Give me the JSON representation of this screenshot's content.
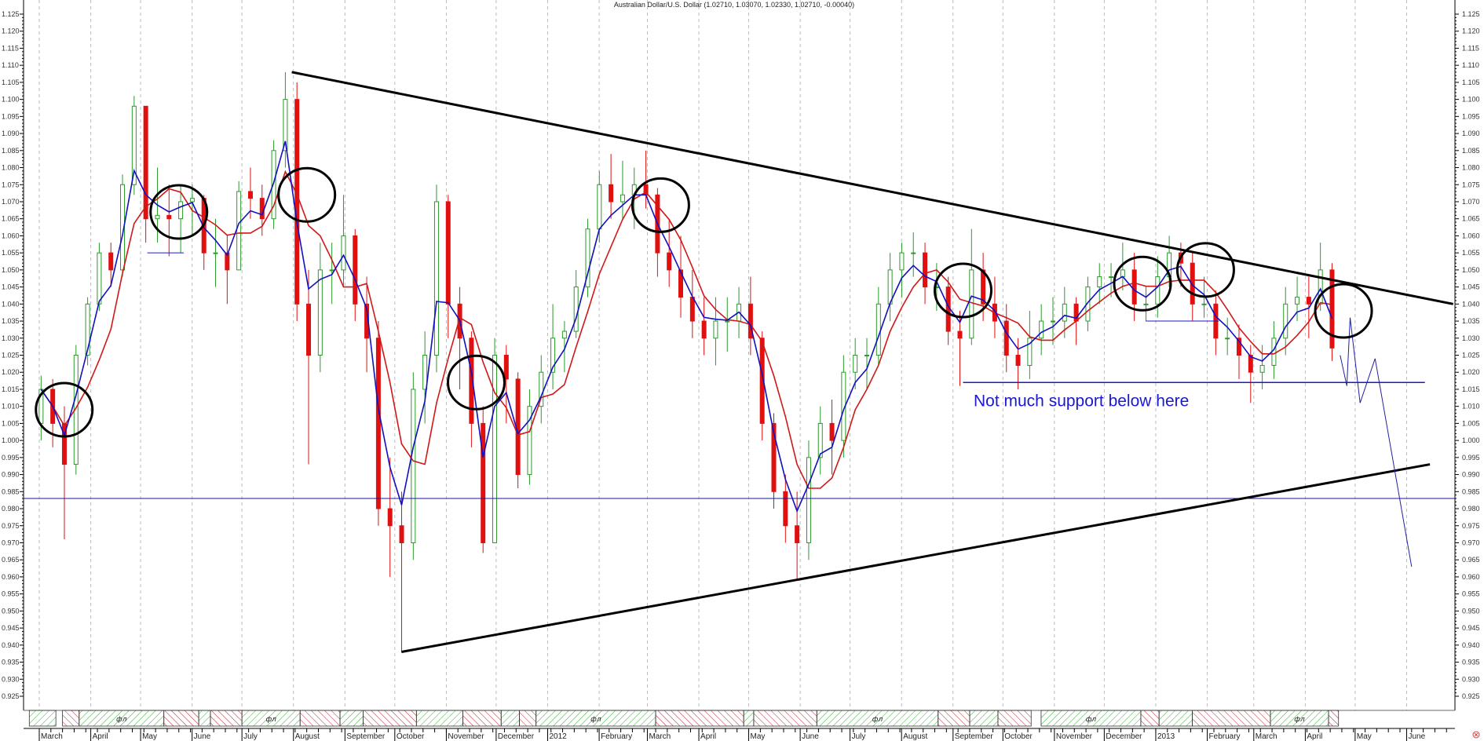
{
  "chart_data": {
    "type": "candlestick",
    "title": "Australian Dollar/U.S. Dollar (1.02710, 1.03070, 1.02330, 1.02710, -0.00040)",
    "ylim": [
      0.925,
      1.125
    ],
    "xlim": [
      "2011-03-01",
      "2013-06-30"
    ],
    "grid": "vertical dashed at month starts",
    "yticks": [
      "1.125",
      "1.120",
      "1.115",
      "1.110",
      "1.105",
      "1.100",
      "1.095",
      "1.090",
      "1.085",
      "1.080",
      "1.075",
      "1.070",
      "1.065",
      "1.060",
      "1.055",
      "1.050",
      "1.045",
      "1.040",
      "1.035",
      "1.030",
      "1.025",
      "1.020",
      "1.015",
      "1.010",
      "1.005",
      "1.000",
      "0.995",
      "0.990",
      "0.985",
      "0.980",
      "0.975",
      "0.970",
      "0.965",
      "0.960",
      "0.955",
      "0.950",
      "0.945",
      "0.940",
      "0.935",
      "0.930",
      "0.925"
    ],
    "xticks": [
      {
        "date": "2011-03-01",
        "label": "March"
      },
      {
        "date": "2011-04-01",
        "label": "April"
      },
      {
        "date": "2011-05-01",
        "label": "May"
      },
      {
        "date": "2011-06-01",
        "label": "June"
      },
      {
        "date": "2011-07-01",
        "label": "July"
      },
      {
        "date": "2011-08-01",
        "label": "August"
      },
      {
        "date": "2011-09-01",
        "label": "September"
      },
      {
        "date": "2011-10-01",
        "label": "October"
      },
      {
        "date": "2011-11-01",
        "label": "November"
      },
      {
        "date": "2011-12-01",
        "label": "December"
      },
      {
        "date": "2012-01-01",
        "label": "2012"
      },
      {
        "date": "2012-02-01",
        "label": "February"
      },
      {
        "date": "2012-03-01",
        "label": "March"
      },
      {
        "date": "2012-04-01",
        "label": "April"
      },
      {
        "date": "2012-05-01",
        "label": "May"
      },
      {
        "date": "2012-06-01",
        "label": "June"
      },
      {
        "date": "2012-07-01",
        "label": "July"
      },
      {
        "date": "2012-08-01",
        "label": "August"
      },
      {
        "date": "2012-09-01",
        "label": "September"
      },
      {
        "date": "2012-10-01",
        "label": "October"
      },
      {
        "date": "2012-11-01",
        "label": "November"
      },
      {
        "date": "2012-12-01",
        "label": "December"
      },
      {
        "date": "2013-01-01",
        "label": "2013"
      },
      {
        "date": "2013-02-01",
        "label": "February"
      },
      {
        "date": "2013-03-01",
        "label": "March"
      },
      {
        "date": "2013-04-01",
        "label": "April"
      },
      {
        "date": "2013-05-01",
        "label": "May"
      },
      {
        "date": "2013-06-01",
        "label": "June"
      }
    ],
    "colors": {
      "up": "#2a9a2a",
      "down": "#e01010",
      "fast_ma": "#1010c0",
      "slow_ma": "#d01818",
      "trendline": "#000000",
      "annotation": "#1a1acc"
    },
    "ohlc_fields": [
      "date",
      "high",
      "low",
      "close"
    ],
    "first_open": 1.005,
    "bars": [
      [
        "2011-03-04",
        1.019,
        1.0,
        1.015
      ],
      [
        "2011-03-11",
        1.018,
        0.998,
        1.005
      ],
      [
        "2011-03-18",
        1.01,
        0.971,
        0.993
      ],
      [
        "2011-03-25",
        1.028,
        0.99,
        1.025
      ],
      [
        "2011-04-01",
        1.042,
        1.022,
        1.04
      ],
      [
        "2011-04-08",
        1.058,
        1.038,
        1.055
      ],
      [
        "2011-04-15",
        1.058,
        1.045,
        1.05
      ],
      [
        "2011-04-22",
        1.078,
        1.048,
        1.075
      ],
      [
        "2011-04-29",
        1.101,
        1.072,
        1.098
      ],
      [
        "2011-05-06",
        1.097,
        1.058,
        1.065
      ],
      [
        "2011-05-13",
        1.08,
        1.058,
        1.066
      ],
      [
        "2011-05-20",
        1.075,
        1.054,
        1.065
      ],
      [
        "2011-05-27",
        1.075,
        1.055,
        1.07
      ],
      [
        "2011-06-03",
        1.075,
        1.06,
        1.071
      ],
      [
        "2011-06-10",
        1.072,
        1.05,
        1.055
      ],
      [
        "2011-06-17",
        1.065,
        1.045,
        1.055
      ],
      [
        "2011-06-24",
        1.06,
        1.04,
        1.05
      ],
      [
        "2011-07-01",
        1.076,
        1.05,
        1.073
      ],
      [
        "2011-07-08",
        1.08,
        1.065,
        1.071
      ],
      [
        "2011-07-15",
        1.075,
        1.06,
        1.065
      ],
      [
        "2011-07-22",
        1.088,
        1.062,
        1.085
      ],
      [
        "2011-07-29",
        1.108,
        1.08,
        1.1
      ],
      [
        "2011-08-05",
        1.105,
        1.035,
        1.04
      ],
      [
        "2011-08-12",
        1.05,
        0.993,
        1.025
      ],
      [
        "2011-08-19",
        1.058,
        1.02,
        1.05
      ],
      [
        "2011-08-26",
        1.058,
        1.04,
        1.05
      ],
      [
        "2011-09-02",
        1.072,
        1.045,
        1.06
      ],
      [
        "2011-09-09",
        1.062,
        1.035,
        1.04
      ],
      [
        "2011-09-16",
        1.048,
        1.02,
        1.03
      ],
      [
        "2011-09-23",
        1.035,
        0.975,
        0.98
      ],
      [
        "2011-09-30",
        0.995,
        0.96,
        0.975
      ],
      [
        "2011-10-07",
        0.985,
        0.938,
        0.97
      ],
      [
        "2011-10-14",
        1.02,
        0.965,
        1.015
      ],
      [
        "2011-10-21",
        1.032,
        1.005,
        1.025
      ],
      [
        "2011-10-28",
        1.075,
        1.02,
        1.07
      ],
      [
        "2011-11-04",
        1.072,
        1.03,
        1.04
      ],
      [
        "2011-11-11",
        1.045,
        1.015,
        1.03
      ],
      [
        "2011-11-18",
        1.032,
        0.998,
        1.005
      ],
      [
        "2011-11-25",
        1.01,
        0.967,
        0.97
      ],
      [
        "2011-12-02",
        1.03,
        0.972,
        1.025
      ],
      [
        "2011-12-09",
        1.028,
        1.005,
        1.018
      ],
      [
        "2011-12-16",
        1.02,
        0.986,
        0.99
      ],
      [
        "2011-12-23",
        1.015,
        0.987,
        1.01
      ],
      [
        "2011-12-30",
        1.025,
        1.005,
        1.02
      ],
      [
        "2012-01-06",
        1.04,
        1.015,
        1.03
      ],
      [
        "2012-01-13",
        1.035,
        1.02,
        1.032
      ],
      [
        "2012-01-20",
        1.05,
        1.03,
        1.045
      ],
      [
        "2012-01-27",
        1.065,
        1.042,
        1.062
      ],
      [
        "2012-02-03",
        1.079,
        1.058,
        1.075
      ],
      [
        "2012-02-10",
        1.084,
        1.065,
        1.07
      ],
      [
        "2012-02-17",
        1.082,
        1.065,
        1.072
      ],
      [
        "2012-02-24",
        1.08,
        1.062,
        1.075
      ],
      [
        "2012-03-02",
        1.085,
        1.068,
        1.072
      ],
      [
        "2012-03-09",
        1.074,
        1.048,
        1.055
      ],
      [
        "2012-03-16",
        1.065,
        1.045,
        1.05
      ],
      [
        "2012-03-23",
        1.06,
        1.036,
        1.042
      ],
      [
        "2012-03-30",
        1.05,
        1.03,
        1.035
      ],
      [
        "2012-04-06",
        1.042,
        1.025,
        1.03
      ],
      [
        "2012-04-13",
        1.042,
        1.022,
        1.035
      ],
      [
        "2012-04-20",
        1.042,
        1.026,
        1.035
      ],
      [
        "2012-04-27",
        1.045,
        1.03,
        1.04
      ],
      [
        "2012-05-04",
        1.048,
        1.025,
        1.03
      ],
      [
        "2012-05-11",
        1.032,
        1.0,
        1.005
      ],
      [
        "2012-05-18",
        1.008,
        0.98,
        0.985
      ],
      [
        "2012-05-25",
        0.99,
        0.97,
        0.975
      ],
      [
        "2012-06-01",
        0.985,
        0.959,
        0.97
      ],
      [
        "2012-06-08",
        1.0,
        0.965,
        0.995
      ],
      [
        "2012-06-15",
        1.01,
        0.99,
        1.005
      ],
      [
        "2012-06-22",
        1.012,
        0.99,
        1.0
      ],
      [
        "2012-06-29",
        1.025,
        0.995,
        1.02
      ],
      [
        "2012-07-06",
        1.03,
        1.015,
        1.025
      ],
      [
        "2012-07-13",
        1.03,
        1.015,
        1.025
      ],
      [
        "2012-07-20",
        1.045,
        1.022,
        1.04
      ],
      [
        "2012-07-27",
        1.055,
        1.035,
        1.05
      ],
      [
        "2012-08-03",
        1.058,
        1.042,
        1.055
      ],
      [
        "2012-08-10",
        1.061,
        1.048,
        1.055
      ],
      [
        "2012-08-17",
        1.058,
        1.04,
        1.045
      ],
      [
        "2012-08-24",
        1.052,
        1.038,
        1.045
      ],
      [
        "2012-08-31",
        1.048,
        1.028,
        1.032
      ],
      [
        "2012-09-07",
        1.038,
        1.016,
        1.03
      ],
      [
        "2012-09-14",
        1.062,
        1.028,
        1.05
      ],
      [
        "2012-09-21",
        1.055,
        1.035,
        1.04
      ],
      [
        "2012-09-28",
        1.048,
        1.03,
        1.035
      ],
      [
        "2012-10-05",
        1.04,
        1.02,
        1.025
      ],
      [
        "2012-10-12",
        1.03,
        1.015,
        1.022
      ],
      [
        "2012-10-19",
        1.038,
        1.018,
        1.03
      ],
      [
        "2012-10-26",
        1.04,
        1.025,
        1.035
      ],
      [
        "2012-11-02",
        1.042,
        1.028,
        1.035
      ],
      [
        "2012-11-09",
        1.045,
        1.03,
        1.04
      ],
      [
        "2012-11-16",
        1.042,
        1.028,
        1.035
      ],
      [
        "2012-11-23",
        1.048,
        1.032,
        1.045
      ],
      [
        "2012-11-30",
        1.052,
        1.04,
        1.048
      ],
      [
        "2012-12-07",
        1.052,
        1.042,
        1.048
      ],
      [
        "2012-12-14",
        1.058,
        1.044,
        1.05
      ],
      [
        "2012-12-21",
        1.055,
        1.035,
        1.04
      ],
      [
        "2012-12-28",
        1.045,
        1.035,
        1.04
      ],
      [
        "2013-01-04",
        1.054,
        1.036,
        1.048
      ],
      [
        "2013-01-11",
        1.06,
        1.045,
        1.055
      ],
      [
        "2013-01-18",
        1.058,
        1.045,
        1.052
      ],
      [
        "2013-01-25",
        1.055,
        1.035,
        1.04
      ],
      [
        "2013-02-01",
        1.048,
        1.036,
        1.04
      ],
      [
        "2013-02-08",
        1.044,
        1.025,
        1.03
      ],
      [
        "2013-02-15",
        1.036,
        1.025,
        1.03
      ],
      [
        "2013-02-22",
        1.034,
        1.018,
        1.025
      ],
      [
        "2013-03-01",
        1.028,
        1.011,
        1.02
      ],
      [
        "2013-03-08",
        1.028,
        1.015,
        1.022
      ],
      [
        "2013-03-15",
        1.035,
        1.018,
        1.03
      ],
      [
        "2013-03-22",
        1.045,
        1.025,
        1.04
      ],
      [
        "2013-03-29",
        1.048,
        1.035,
        1.042
      ],
      [
        "2013-04-05",
        1.048,
        1.03,
        1.04
      ],
      [
        "2013-04-12",
        1.058,
        1.038,
        1.05
      ],
      [
        "2013-04-19",
        1.052,
        1.0233,
        1.0271
      ]
    ],
    "annotations": {
      "upper_trendline": [
        [
          "2011-07-31",
          1.108
        ],
        [
          "2013-06-29",
          1.04
        ]
      ],
      "lower_trendline": [
        [
          "2011-10-05",
          0.938
        ],
        [
          "2013-06-15",
          0.993
        ]
      ],
      "horizontal_line": 0.983,
      "support_line": {
        "price": 1.017,
        "from": "2012-09-07",
        "to": "2013-06-12"
      },
      "short_lines": [
        {
          "price": 1.055,
          "from": "2011-05-05",
          "to": "2011-05-27"
        },
        {
          "price": 1.035,
          "from": "2012-12-26",
          "to": "2013-02-08"
        }
      ],
      "projection": [
        [
          "2013-04-22",
          1.025
        ],
        [
          "2013-04-26",
          1.016
        ],
        [
          "2013-04-28",
          1.036
        ],
        [
          "2013-05-04",
          1.011
        ],
        [
          "2013-05-13",
          1.024
        ],
        [
          "2013-06-04",
          0.963
        ]
      ],
      "circles": [
        [
          "2011-03-16",
          1.009
        ],
        [
          "2011-05-24",
          1.067
        ],
        [
          "2011-08-09",
          1.072
        ],
        [
          "2011-11-19",
          1.017
        ],
        [
          "2012-03-09",
          1.069
        ],
        [
          "2012-09-07",
          1.044
        ],
        [
          "2012-12-24",
          1.046
        ],
        [
          "2013-01-31",
          1.05
        ],
        [
          "2013-04-24",
          1.038
        ]
      ],
      "text": "Not much support below here"
    },
    "phase_strip": [
      [
        "2011-02-23",
        "2011-03-11",
        "up",
        ""
      ],
      [
        "2011-03-15",
        "2011-03-25",
        "down",
        ""
      ],
      [
        "2011-03-25",
        "2011-05-15",
        "up",
        "фл"
      ],
      [
        "2011-05-15",
        "2011-06-05",
        "down",
        ""
      ],
      [
        "2011-06-05",
        "2011-06-12",
        "up",
        ""
      ],
      [
        "2011-06-12",
        "2011-07-01",
        "down",
        ""
      ],
      [
        "2011-07-01",
        "2011-08-05",
        "up",
        "фл"
      ],
      [
        "2011-08-05",
        "2011-08-29",
        "down",
        ""
      ],
      [
        "2011-08-29",
        "2011-09-12",
        "up",
        ""
      ],
      [
        "2011-09-12",
        "2011-10-14",
        "down",
        ""
      ],
      [
        "2011-10-14",
        "2011-11-11",
        "up",
        ""
      ],
      [
        "2011-11-11",
        "2011-12-04",
        "down",
        ""
      ],
      [
        "2011-12-04",
        "2011-12-15",
        "up",
        ""
      ],
      [
        "2011-12-15",
        "2011-12-25",
        "down",
        ""
      ],
      [
        "2011-12-25",
        "2012-03-06",
        "up",
        "фл"
      ],
      [
        "2012-03-06",
        "2012-04-28",
        "down",
        ""
      ],
      [
        "2012-04-28",
        "2012-05-04",
        "up",
        ""
      ],
      [
        "2012-05-04",
        "2012-06-11",
        "down",
        ""
      ],
      [
        "2012-06-11",
        "2012-08-23",
        "up",
        "фл"
      ],
      [
        "2012-08-23",
        "2012-09-11",
        "down",
        ""
      ],
      [
        "2012-09-11",
        "2012-09-28",
        "up",
        ""
      ],
      [
        "2012-09-28",
        "2012-10-18",
        "down",
        ""
      ],
      [
        "2012-10-24",
        "2012-12-23",
        "up",
        "фл"
      ],
      [
        "2012-12-23",
        "2013-01-03",
        "down",
        ""
      ],
      [
        "2013-01-03",
        "2013-01-23",
        "up",
        ""
      ],
      [
        "2013-01-23",
        "2013-03-11",
        "down",
        ""
      ],
      [
        "2013-03-11",
        "2013-04-15",
        "up",
        "фл"
      ],
      [
        "2013-04-15",
        "2013-04-21",
        "down",
        ""
      ]
    ]
  },
  "corner_icon": "close-circle-icon"
}
